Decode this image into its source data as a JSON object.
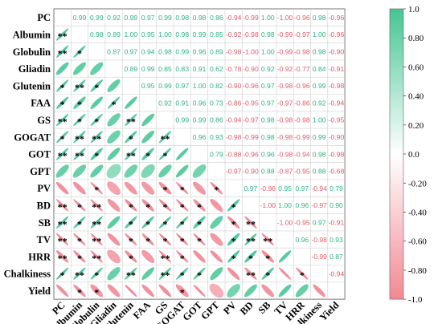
{
  "chart_data": {
    "type": "heatmap",
    "variables": [
      "PC",
      "Albumin",
      "Globulin",
      "Gliadin",
      "Glutenin",
      "FAA",
      "GS",
      "GOGAT",
      "GOT",
      "GPT",
      "PV",
      "BD",
      "SB",
      "TV",
      "HRR",
      "Chalkiness",
      "Yield"
    ],
    "upper_correlations": [
      [
        0,
        1,
        0.99
      ],
      [
        0,
        2,
        0.99
      ],
      [
        0,
        3,
        0.92
      ],
      [
        0,
        4,
        0.99
      ],
      [
        0,
        5,
        0.97
      ],
      [
        0,
        6,
        0.99
      ],
      [
        0,
        7,
        0.98
      ],
      [
        0,
        8,
        0.98
      ],
      [
        0,
        9,
        0.86
      ],
      [
        0,
        10,
        -0.94
      ],
      [
        0,
        11,
        -0.99
      ],
      [
        0,
        12,
        1.0
      ],
      [
        0,
        13,
        -1.0
      ],
      [
        0,
        14,
        -0.96
      ],
      [
        0,
        15,
        0.98
      ],
      [
        0,
        16,
        -0.96
      ],
      [
        1,
        2,
        0.98
      ],
      [
        1,
        3,
        0.89
      ],
      [
        1,
        4,
        1.0
      ],
      [
        1,
        5,
        0.95
      ],
      [
        1,
        6,
        1.0
      ],
      [
        1,
        7,
        0.98
      ],
      [
        1,
        8,
        0.99
      ],
      [
        1,
        9,
        0.85
      ],
      [
        1,
        10,
        -0.92
      ],
      [
        1,
        11,
        -0.98
      ],
      [
        1,
        12,
        0.98
      ],
      [
        1,
        13,
        -0.99
      ],
      [
        1,
        14,
        -0.97
      ],
      [
        1,
        15,
        1.0
      ],
      [
        1,
        16,
        -0.96
      ],
      [
        2,
        3,
        0.87
      ],
      [
        2,
        4,
        0.97
      ],
      [
        2,
        5,
        0.94
      ],
      [
        2,
        6,
        0.98
      ],
      [
        2,
        7,
        0.99
      ],
      [
        2,
        8,
        0.96
      ],
      [
        2,
        9,
        0.89
      ],
      [
        2,
        10,
        -0.98
      ],
      [
        2,
        11,
        -1.0
      ],
      [
        2,
        12,
        1.0
      ],
      [
        2,
        13,
        -0.99
      ],
      [
        2,
        14,
        -0.98
      ],
      [
        2,
        15,
        0.98
      ],
      [
        2,
        16,
        -0.9
      ],
      [
        3,
        4,
        0.89
      ],
      [
        3,
        5,
        0.99
      ],
      [
        3,
        6,
        0.85
      ],
      [
        3,
        7,
        0.83
      ],
      [
        3,
        8,
        0.91
      ],
      [
        3,
        9,
        0.62
      ],
      [
        3,
        10,
        -0.78
      ],
      [
        3,
        11,
        -0.9
      ],
      [
        3,
        12,
        0.92
      ],
      [
        3,
        13,
        -0.92
      ],
      [
        3,
        14,
        -0.77
      ],
      [
        3,
        15,
        0.84
      ],
      [
        3,
        16,
        -0.91
      ],
      [
        4,
        5,
        0.95
      ],
      [
        4,
        6,
        0.99
      ],
      [
        4,
        7,
        0.97
      ],
      [
        4,
        8,
        1.0
      ],
      [
        4,
        9,
        0.82
      ],
      [
        4,
        10,
        -0.9
      ],
      [
        4,
        11,
        -0.96
      ],
      [
        4,
        12,
        0.97
      ],
      [
        4,
        13,
        -0.98
      ],
      [
        4,
        14,
        -0.96
      ],
      [
        4,
        15,
        0.99
      ],
      [
        4,
        16,
        -0.98
      ],
      [
        5,
        6,
        0.92
      ],
      [
        5,
        7,
        0.91
      ],
      [
        5,
        8,
        0.96
      ],
      [
        5,
        9,
        0.73
      ],
      [
        5,
        10,
        -0.86
      ],
      [
        5,
        11,
        -0.95
      ],
      [
        5,
        12,
        0.97
      ],
      [
        5,
        13,
        -0.97
      ],
      [
        5,
        14,
        -0.86
      ],
      [
        5,
        15,
        0.92
      ],
      [
        5,
        16,
        -0.94
      ],
      [
        6,
        7,
        0.99
      ],
      [
        6,
        8,
        0.99
      ],
      [
        6,
        9,
        0.86
      ],
      [
        6,
        10,
        -0.94
      ],
      [
        6,
        11,
        -0.97
      ],
      [
        6,
        12,
        0.98
      ],
      [
        6,
        13,
        -0.98
      ],
      [
        6,
        14,
        -0.98
      ],
      [
        6,
        15,
        1.0
      ],
      [
        6,
        16,
        -0.95
      ],
      [
        7,
        8,
        0.96
      ],
      [
        7,
        9,
        0.93
      ],
      [
        7,
        10,
        -0.98
      ],
      [
        7,
        11,
        -0.99
      ],
      [
        7,
        12,
        0.98
      ],
      [
        7,
        13,
        -0.98
      ],
      [
        7,
        14,
        -0.99
      ],
      [
        7,
        15,
        0.99
      ],
      [
        7,
        16,
        -0.9
      ],
      [
        8,
        9,
        0.79
      ],
      [
        8,
        10,
        -0.88
      ],
      [
        8,
        11,
        -0.96
      ],
      [
        8,
        12,
        0.96
      ],
      [
        8,
        13,
        -0.98
      ],
      [
        8,
        14,
        -0.94
      ],
      [
        8,
        15,
        0.98
      ],
      [
        8,
        16,
        -0.98
      ],
      [
        9,
        10,
        -0.97
      ],
      [
        9,
        11,
        -0.9
      ],
      [
        9,
        12,
        0.88
      ],
      [
        9,
        13,
        -0.87
      ],
      [
        9,
        14,
        -0.95
      ],
      [
        9,
        15,
        0.88
      ],
      [
        9,
        16,
        -0.68
      ],
      [
        10,
        11,
        0.97
      ],
      [
        10,
        12,
        -0.96
      ],
      [
        10,
        13,
        0.95
      ],
      [
        10,
        14,
        0.97
      ],
      [
        10,
        15,
        -0.94
      ],
      [
        10,
        16,
        0.79
      ],
      [
        11,
        12,
        -1.0
      ],
      [
        11,
        13,
        1.0
      ],
      [
        11,
        14,
        0.96
      ],
      [
        11,
        15,
        -0.97
      ],
      [
        11,
        16,
        0.9
      ],
      [
        12,
        13,
        -1.0
      ],
      [
        12,
        14,
        -0.95
      ],
      [
        12,
        15,
        0.97
      ],
      [
        12,
        16,
        -0.91
      ],
      [
        13,
        14,
        0.96
      ],
      [
        13,
        15,
        -0.98
      ],
      [
        13,
        16,
        0.93
      ],
      [
        14,
        15,
        -0.99
      ],
      [
        14,
        16,
        0.87
      ],
      [
        15,
        16,
        -0.94
      ]
    ],
    "significance_marks": [
      [
        1,
        0,
        "**"
      ],
      [
        2,
        0,
        "**"
      ],
      [
        2,
        1,
        "*"
      ],
      [
        4,
        0,
        "*"
      ],
      [
        4,
        1,
        "**"
      ],
      [
        4,
        2,
        "*"
      ],
      [
        5,
        0,
        "*"
      ],
      [
        5,
        1,
        "*"
      ],
      [
        5,
        3,
        "*"
      ],
      [
        6,
        0,
        "**"
      ],
      [
        6,
        1,
        "*"
      ],
      [
        6,
        2,
        "*"
      ],
      [
        6,
        4,
        "**"
      ],
      [
        7,
        0,
        "*"
      ],
      [
        7,
        1,
        "**"
      ],
      [
        7,
        2,
        "**"
      ],
      [
        7,
        4,
        "*"
      ],
      [
        7,
        6,
        "**"
      ],
      [
        8,
        0,
        "**"
      ],
      [
        8,
        1,
        "**"
      ],
      [
        8,
        2,
        "*"
      ],
      [
        8,
        4,
        "**"
      ],
      [
        8,
        5,
        "*"
      ],
      [
        8,
        6,
        "*"
      ],
      [
        10,
        2,
        "*"
      ],
      [
        10,
        6,
        "*"
      ],
      [
        10,
        7,
        "*"
      ],
      [
        10,
        9,
        "*"
      ],
      [
        11,
        0,
        "**"
      ],
      [
        11,
        1,
        "*"
      ],
      [
        11,
        2,
        "**"
      ],
      [
        11,
        4,
        "*"
      ],
      [
        11,
        5,
        "*"
      ],
      [
        11,
        6,
        "*"
      ],
      [
        11,
        7,
        "*"
      ],
      [
        11,
        8,
        "*"
      ],
      [
        11,
        10,
        "*"
      ],
      [
        12,
        0,
        "**"
      ],
      [
        12,
        1,
        "*"
      ],
      [
        12,
        2,
        "**"
      ],
      [
        12,
        4,
        "*"
      ],
      [
        12,
        5,
        "*"
      ],
      [
        12,
        6,
        "*"
      ],
      [
        12,
        7,
        "*"
      ],
      [
        12,
        8,
        "*"
      ],
      [
        12,
        10,
        "*"
      ],
      [
        12,
        11,
        "**"
      ],
      [
        13,
        0,
        "**"
      ],
      [
        13,
        1,
        "*"
      ],
      [
        13,
        2,
        "**"
      ],
      [
        13,
        4,
        "*"
      ],
      [
        13,
        5,
        "*"
      ],
      [
        13,
        6,
        "*"
      ],
      [
        13,
        7,
        "*"
      ],
      [
        13,
        8,
        "*"
      ],
      [
        13,
        10,
        "*"
      ],
      [
        13,
        11,
        "**"
      ],
      [
        13,
        12,
        "**"
      ],
      [
        14,
        0,
        "**"
      ],
      [
        14,
        1,
        "*"
      ],
      [
        14,
        2,
        "**"
      ],
      [
        14,
        4,
        "*"
      ],
      [
        14,
        6,
        "**"
      ],
      [
        14,
        7,
        "*"
      ],
      [
        14,
        10,
        "*"
      ],
      [
        14,
        11,
        "*"
      ],
      [
        14,
        12,
        "*"
      ],
      [
        15,
        0,
        "*"
      ],
      [
        15,
        1,
        "**"
      ],
      [
        15,
        2,
        "*"
      ],
      [
        15,
        4,
        "**"
      ],
      [
        15,
        6,
        "**"
      ],
      [
        15,
        7,
        "*"
      ],
      [
        15,
        8,
        "*"
      ],
      [
        15,
        11,
        "**"
      ],
      [
        15,
        12,
        "*"
      ],
      [
        15,
        14,
        "*"
      ],
      [
        16,
        1,
        "*"
      ],
      [
        16,
        2,
        "*"
      ],
      [
        16,
        7,
        "*"
      ]
    ],
    "colorbar": {
      "range": [
        -1.0,
        1.0
      ],
      "ticks": [
        "1.0",
        "0.80",
        "0.60",
        "0.40",
        "0.20",
        "0.0",
        "-0.20",
        "-0.40",
        "-0.60",
        "-0.80",
        "-1.0"
      ]
    },
    "colors": {
      "positive": "#4fc89a",
      "negative": "#f08a96",
      "neutral": "#ffffff",
      "positive_text": "#2db380",
      "negative_text": "#e05a6a"
    }
  }
}
